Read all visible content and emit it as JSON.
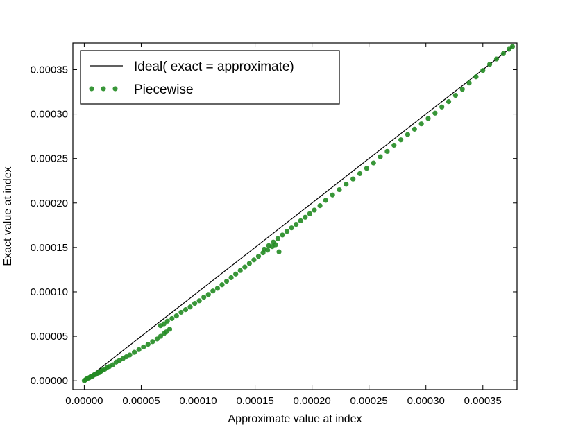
{
  "chart_data": {
    "type": "scatter",
    "xlabel": "Approximate value at index",
    "ylabel": "Exact value at index",
    "xlim": [
      -1e-05,
      0.00038
    ],
    "ylim": [
      -1e-05,
      0.00038
    ],
    "x_ticks": [
      0.0,
      5e-05,
      0.0001,
      0.00015,
      0.0002,
      0.00025,
      0.0003,
      0.00035
    ],
    "x_tick_labels": [
      "0.00000",
      "0.00005",
      "0.00010",
      "0.00015",
      "0.00020",
      "0.00025",
      "0.00030",
      "0.00035"
    ],
    "y_ticks": [
      0.0,
      5e-05,
      0.0001,
      0.00015,
      0.0002,
      0.00025,
      0.0003,
      0.00035
    ],
    "y_tick_labels": [
      "0.00000",
      "0.00005",
      "0.00010",
      "0.00015",
      "0.00020",
      "0.00025",
      "0.00030",
      "0.00035"
    ],
    "grid": false,
    "legend_position": "top-left",
    "colors": {
      "ideal": "#000000",
      "piecewise": "#228b22"
    },
    "series": [
      {
        "name": "Ideal( exact = approximate)",
        "kind": "line",
        "x": [
          0.0,
          0.000376
        ],
        "y": [
          0.0,
          0.000376
        ]
      },
      {
        "name": "Piecewise",
        "kind": "scatter",
        "x": [
          0.0,
          1e-06,
          2e-06,
          3e-06,
          4e-06,
          5e-06,
          6e-06,
          7e-06,
          8e-06,
          9e-06,
          1e-05,
          1.1e-05,
          1.2e-05,
          1.3e-05,
          1.4e-05,
          1.5e-05,
          1.6e-05,
          1.8e-05,
          2e-05,
          2.2e-05,
          2.5e-05,
          2.8e-05,
          3.1e-05,
          3.4e-05,
          3.7e-05,
          4e-05,
          4.4e-05,
          4.8e-05,
          5.2e-05,
          5.6e-05,
          6e-05,
          6.4e-05,
          6.7e-05,
          7e-05,
          7.2e-05,
          7.5e-05,
          6.7e-05,
          7e-05,
          7.3e-05,
          7.7e-05,
          8.1e-05,
          8.5e-05,
          8.9e-05,
          9.3e-05,
          9.7e-05,
          0.000101,
          0.000105,
          0.000109,
          0.000113,
          0.000117,
          0.000121,
          0.000125,
          0.000129,
          0.000133,
          0.000137,
          0.000141,
          0.000145,
          0.000149,
          0.000153,
          0.000157,
          0.000161,
          0.000165,
          0.000168,
          0.000171,
          0.000158,
          0.000162,
          0.000166,
          0.00017,
          0.000174,
          0.000178,
          0.000182,
          0.000186,
          0.00019,
          0.000194,
          0.000198,
          0.000202,
          0.000207,
          0.000212,
          0.000218,
          0.000224,
          0.00023,
          0.000236,
          0.000242,
          0.000248,
          0.000254,
          0.00026,
          0.000266,
          0.000272,
          0.000278,
          0.000284,
          0.00029,
          0.000296,
          0.000302,
          0.000308,
          0.000314,
          0.00032,
          0.000326,
          0.000332,
          0.000338,
          0.000344,
          0.00035,
          0.000356,
          0.000362,
          0.000368,
          0.000373,
          0.000376
        ],
        "y": [
          0.0,
          1e-06,
          2e-06,
          3e-06,
          3e-06,
          4e-06,
          5e-06,
          5e-06,
          6e-06,
          7e-06,
          7e-06,
          8e-06,
          9e-06,
          9e-06,
          1e-05,
          1.1e-05,
          1.2e-05,
          1.3e-05,
          1.5e-05,
          1.6e-05,
          1.8e-05,
          2.1e-05,
          2.3e-05,
          2.5e-05,
          2.7e-05,
          2.9e-05,
          3.2e-05,
          3.5e-05,
          3.8e-05,
          4.1e-05,
          4.4e-05,
          4.7e-05,
          5e-05,
          5.3e-05,
          5.5e-05,
          5.8e-05,
          6.2e-05,
          6.4e-05,
          6.7e-05,
          7e-05,
          7.3e-05,
          7.7e-05,
          8e-05,
          8.3e-05,
          8.7e-05,
          9e-05,
          9.4e-05,
          9.7e-05,
          0.000101,
          0.000104,
          0.000108,
          0.000112,
          0.000116,
          0.00012,
          0.000124,
          0.000128,
          0.000132,
          0.000136,
          0.00014,
          0.000144,
          0.000147,
          0.000151,
          0.000153,
          0.000145,
          0.000148,
          0.000152,
          0.000156,
          0.00016,
          0.000164,
          0.000168,
          0.000172,
          0.000176,
          0.00018,
          0.000184,
          0.000188,
          0.000192,
          0.000197,
          0.000203,
          0.000209,
          0.000215,
          0.000221,
          0.000227,
          0.000233,
          0.000239,
          0.000245,
          0.000252,
          0.000258,
          0.000265,
          0.000271,
          0.000277,
          0.000283,
          0.000289,
          0.000295,
          0.000301,
          0.000308,
          0.000314,
          0.000321,
          0.000328,
          0.000335,
          0.000342,
          0.000349,
          0.000356,
          0.000362,
          0.000368,
          0.000373,
          0.000376
        ]
      }
    ]
  }
}
